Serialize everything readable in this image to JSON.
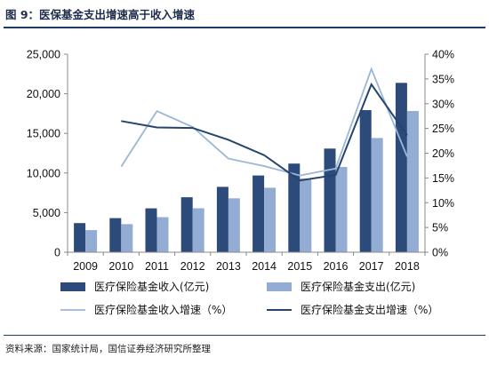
{
  "figure": {
    "title": "图 9：医保基金支出增速高于收入增速",
    "source": "资料来源：国家统计局，国信证券经济研究所整理"
  },
  "colors": {
    "income_bar": "#2c4a7a",
    "expense_bar": "#93acd3",
    "income_growth_line": "#9bb6d6",
    "expense_growth_line": "#26446e",
    "rule": "#1f3b6b"
  },
  "chart_data": {
    "type": "bar",
    "categories": [
      "2009",
      "2010",
      "2011",
      "2012",
      "2013",
      "2014",
      "2015",
      "2016",
      "2017",
      "2018"
    ],
    "series": [
      {
        "name": "医疗保险基金收入(亿元)",
        "kind": "bar",
        "axis": "left",
        "values": [
          3672,
          4309,
          5539,
          6939,
          8248,
          9687,
          11193,
          13084,
          17932,
          21384
        ]
      },
      {
        "name": "医疗保险基金支出(亿元)",
        "kind": "bar",
        "axis": "left",
        "values": [
          2797,
          3538,
          4431,
          5544,
          6801,
          8134,
          9312,
          10767,
          14422,
          17822
        ]
      },
      {
        "name": "医疗保险基金收入增速（%）",
        "kind": "line",
        "axis": "right",
        "values": [
          null,
          17.3,
          28.5,
          25.3,
          18.9,
          17.4,
          15.5,
          16.9,
          37.0,
          19.3
        ]
      },
      {
        "name": "医疗保险基金支出增速（%）",
        "kind": "line",
        "axis": "right",
        "values": [
          null,
          26.5,
          25.2,
          25.1,
          22.7,
          19.6,
          14.5,
          15.6,
          33.9,
          23.6
        ]
      }
    ],
    "y_left": {
      "lim": [
        0,
        25000
      ],
      "ticks": [
        "0",
        "5,000",
        "10,000",
        "15,000",
        "20,000",
        "25,000"
      ],
      "tick_values": [
        0,
        5000,
        10000,
        15000,
        20000,
        25000
      ]
    },
    "y_right": {
      "lim": [
        0,
        40
      ],
      "ticks": [
        "0%",
        "5%",
        "10%",
        "15%",
        "20%",
        "25%",
        "30%",
        "35%",
        "40%"
      ],
      "tick_values": [
        0,
        5,
        10,
        15,
        20,
        25,
        30,
        35,
        40
      ]
    },
    "grid": false,
    "legend_position": "bottom"
  }
}
